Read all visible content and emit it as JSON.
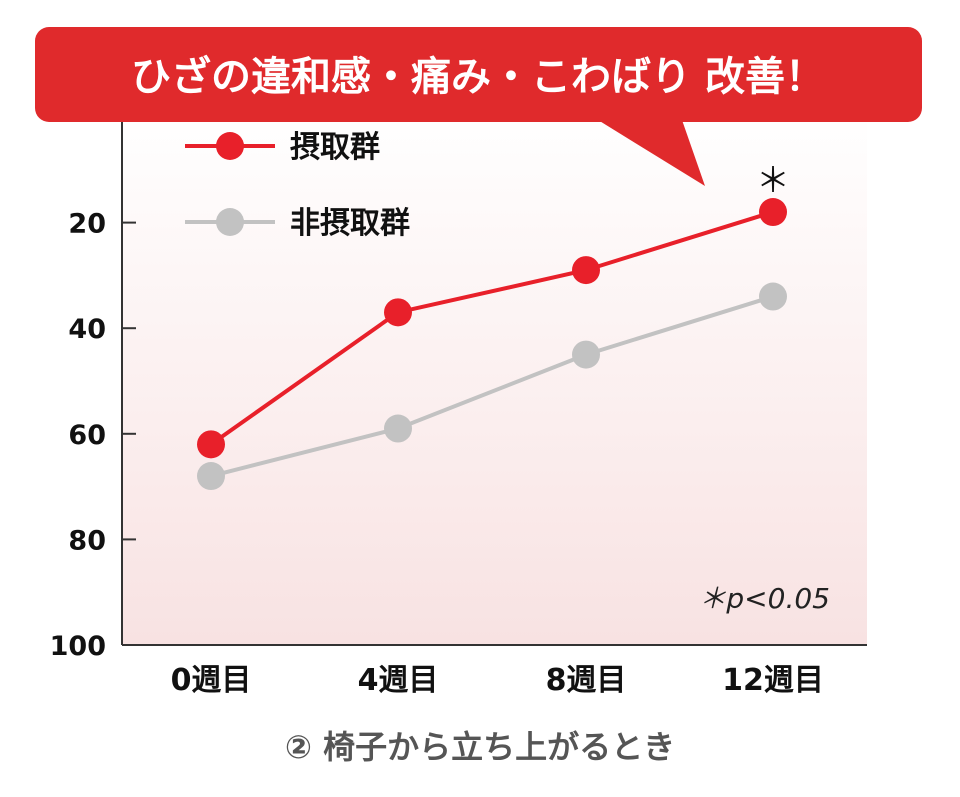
{
  "chart_data": {
    "type": "line",
    "banner": "ひざの違和感・痛み・こわばり 改善！",
    "categories": [
      "0週目",
      "4週目",
      "8週目",
      "12週目"
    ],
    "series": [
      {
        "name": "摂取群",
        "values": [
          62,
          37,
          29,
          18
        ],
        "color": "#e8202a"
      },
      {
        "name": "非摂取群",
        "values": [
          68,
          59,
          45,
          34
        ],
        "color": "#c2c2c2"
      }
    ],
    "yticks": [
      "20",
      "40",
      "60",
      "80",
      "100"
    ],
    "ylim": [
      0,
      100
    ],
    "y_inverted": true,
    "significance_marker": "＊",
    "note": "＊p<0.05",
    "caption": "② 椅子から立ち上がるとき",
    "banner_color": "#e02a2c"
  }
}
